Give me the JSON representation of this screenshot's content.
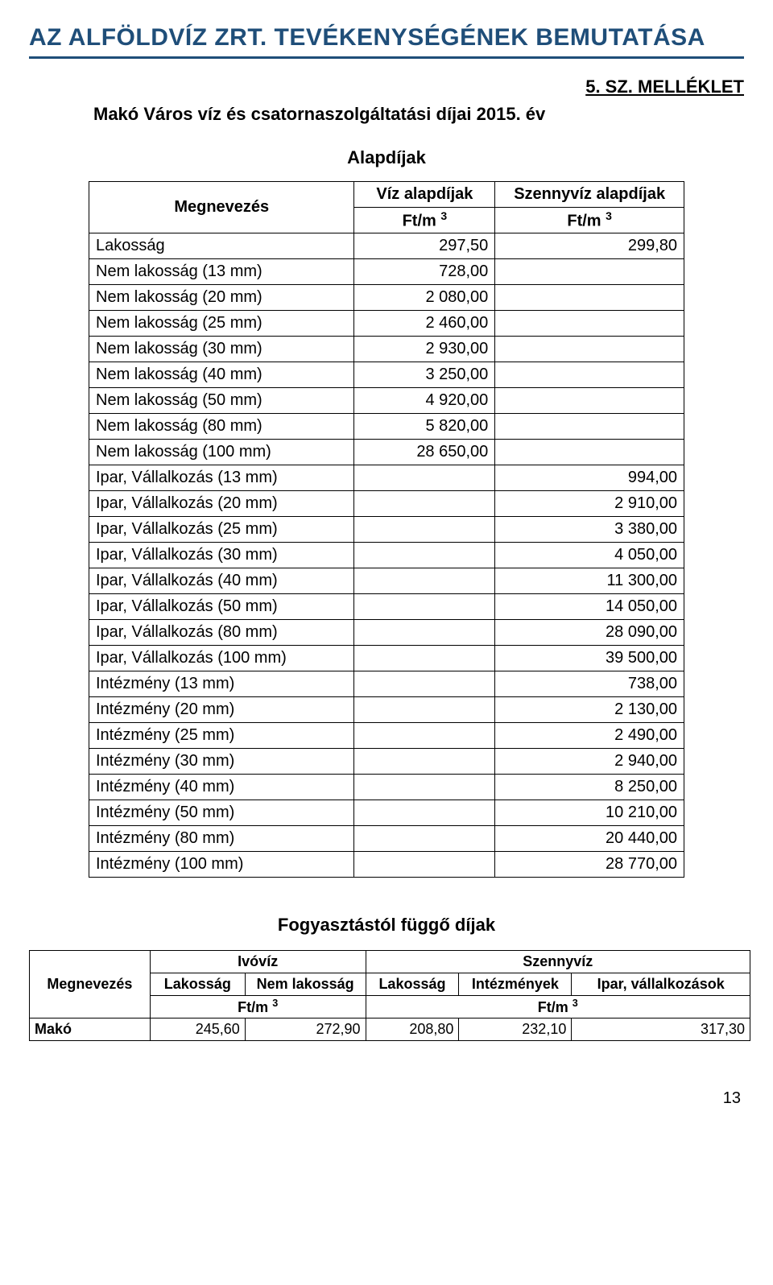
{
  "title": "AZ ALFÖLDVÍZ ZRT. TEVÉKENYSÉGÉNEK BEMUTATÁSA",
  "title_color": "#1f4e79",
  "underline_color": "#1f4e79",
  "annex_label": "5. SZ. MELLÉKLET",
  "subtitle": "Makó Város víz és csatornaszolgáltatási díjai 2015. év",
  "base_fees": {
    "heading": "Alapdíjak",
    "col_meg": "Megnevezés",
    "col_viz": "Víz alapdíjak",
    "col_szenny": "Szennyvíz alapdíjak",
    "unit": "Ft/m",
    "unit_exp": "3",
    "rows": [
      {
        "label": "Lakosság",
        "v1": "297,50",
        "v2": "299,80"
      },
      {
        "label": "Nem lakosság (13 mm)",
        "v1": "728,00",
        "v2": ""
      },
      {
        "label": "Nem lakosság (20 mm)",
        "v1": "2 080,00",
        "v2": ""
      },
      {
        "label": "Nem lakosság (25 mm)",
        "v1": "2 460,00",
        "v2": ""
      },
      {
        "label": "Nem lakosság (30 mm)",
        "v1": "2 930,00",
        "v2": ""
      },
      {
        "label": "Nem lakosság (40 mm)",
        "v1": "3 250,00",
        "v2": ""
      },
      {
        "label": "Nem lakosság (50 mm)",
        "v1": "4 920,00",
        "v2": ""
      },
      {
        "label": "Nem lakosság (80 mm)",
        "v1": "5 820,00",
        "v2": ""
      },
      {
        "label": "Nem lakosság (100 mm)",
        "v1": "28 650,00",
        "v2": ""
      },
      {
        "label": "Ipar, Vállalkozás (13 mm)",
        "v1": "",
        "v2": "994,00"
      },
      {
        "label": "Ipar, Vállalkozás (20 mm)",
        "v1": "",
        "v2": "2 910,00"
      },
      {
        "label": "Ipar, Vállalkozás (25 mm)",
        "v1": "",
        "v2": "3 380,00"
      },
      {
        "label": "Ipar, Vállalkozás (30 mm)",
        "v1": "",
        "v2": "4 050,00"
      },
      {
        "label": "Ipar, Vállalkozás (40 mm)",
        "v1": "",
        "v2": "11 300,00"
      },
      {
        "label": "Ipar, Vállalkozás (50 mm)",
        "v1": "",
        "v2": "14 050,00"
      },
      {
        "label": "Ipar, Vállalkozás (80 mm)",
        "v1": "",
        "v2": "28 090,00"
      },
      {
        "label": "Ipar, Vállalkozás (100 mm)",
        "v1": "",
        "v2": "39 500,00"
      },
      {
        "label": "Intézmény (13 mm)",
        "v1": "",
        "v2": "738,00"
      },
      {
        "label": "Intézmény (20 mm)",
        "v1": "",
        "v2": "2 130,00"
      },
      {
        "label": "Intézmény (25 mm)",
        "v1": "",
        "v2": "2 490,00"
      },
      {
        "label": "Intézmény (30 mm)",
        "v1": "",
        "v2": "2 940,00"
      },
      {
        "label": "Intézmény (40 mm)",
        "v1": "",
        "v2": "8 250,00"
      },
      {
        "label": "Intézmény (50 mm)",
        "v1": "",
        "v2": "10 210,00"
      },
      {
        "label": "Intézmény (80 mm)",
        "v1": "",
        "v2": "20 440,00"
      },
      {
        "label": "Intézmény (100 mm)",
        "v1": "",
        "v2": "28 770,00"
      }
    ]
  },
  "consumption": {
    "heading": "Fogyasztástól függő díjak",
    "col_meg": "Megnevezés",
    "group_ivoviz": "Ivóvíz",
    "group_szenny": "Szennyvíz",
    "col_lakossag": "Lakosság",
    "col_nemlakossag": "Nem lakosság",
    "col_intezmenyek": "Intézmények",
    "col_ipar": "Ipar, vállalkozások",
    "unit": "Ft/m",
    "unit_exp": "3",
    "rows": [
      {
        "label": "Makó",
        "v1": "245,60",
        "v2": "272,90",
        "v3": "208,80",
        "v4": "232,10",
        "v5": "317,30"
      }
    ]
  },
  "page_number": "13"
}
